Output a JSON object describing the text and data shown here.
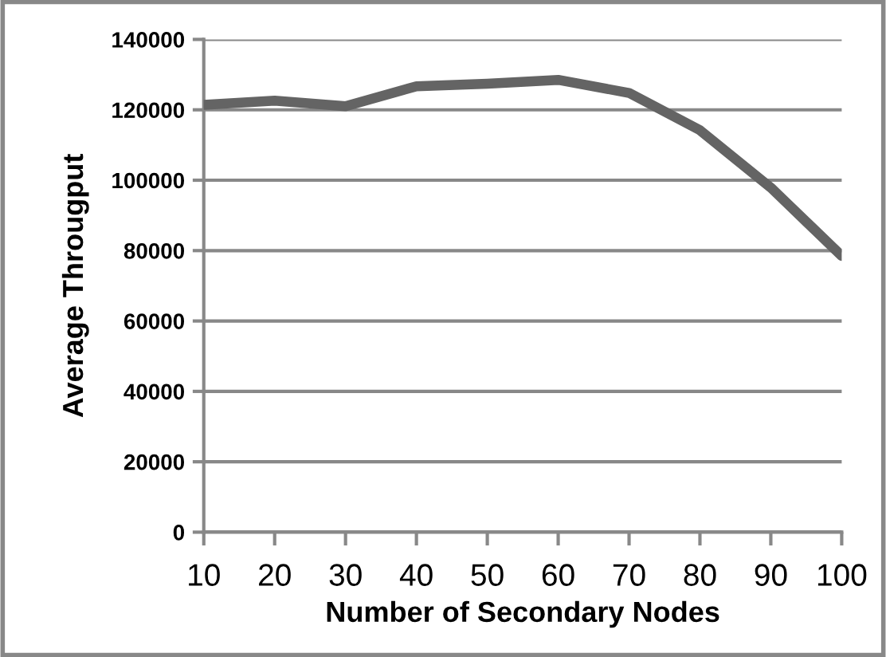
{
  "chart_data": {
    "type": "line",
    "xlabel": "Number of Secondary Nodes",
    "ylabel": "Average Througput",
    "x": [
      10,
      20,
      30,
      40,
      50,
      60,
      70,
      80,
      90,
      100
    ],
    "series": [
      {
        "color": "#646464",
        "values": [
          121400,
          122600,
          121000,
          126700,
          127400,
          128500,
          124800,
          114200,
          97900,
          78500
        ]
      }
    ],
    "xlim": [
      10,
      100
    ],
    "xticks": [
      10,
      20,
      30,
      40,
      50,
      60,
      70,
      80,
      90,
      100
    ],
    "ylim": [
      0,
      140000
    ],
    "yticks": [
      0,
      20000,
      40000,
      60000,
      80000,
      100000,
      120000,
      140000
    ],
    "grid": "y",
    "marker": "none",
    "line_style": "solid"
  }
}
